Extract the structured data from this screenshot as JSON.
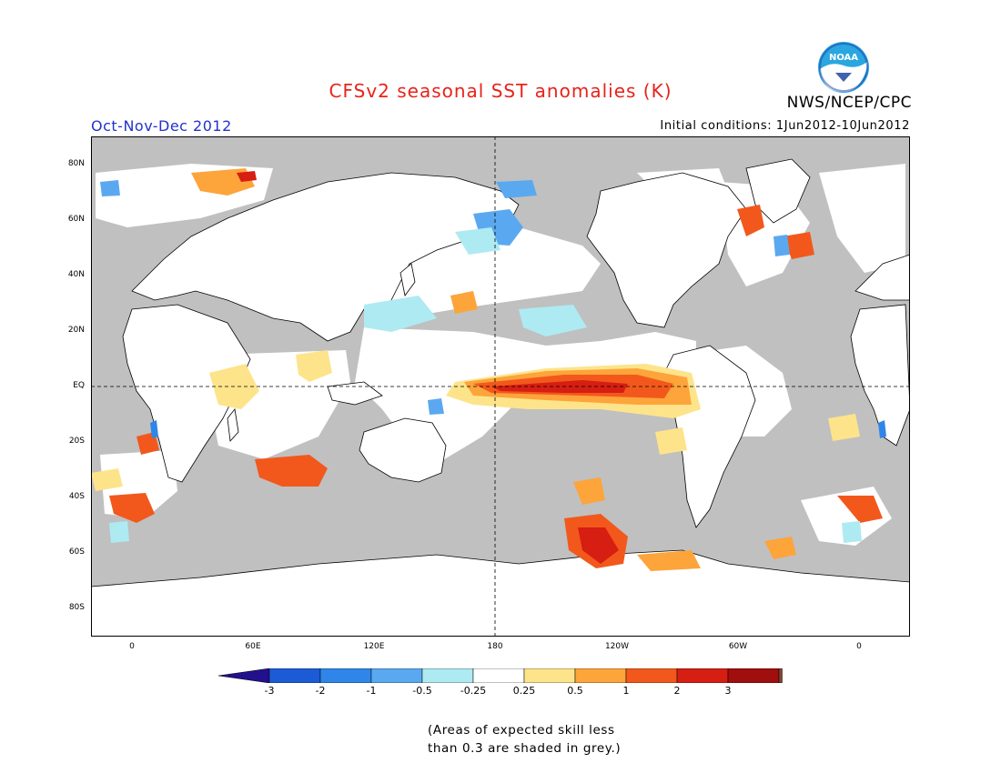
{
  "title": "CFSv2 seasonal SST anomalies (K)",
  "agency": "NWS/NCEP/CPC",
  "logo_text": "NOAA",
  "season": "Oct-Nov-Dec 2012",
  "initial_conditions": "Initial conditions: 1Jun2012-10Jun2012",
  "lat_labels": [
    "80N",
    "60N",
    "40N",
    "20N",
    "EQ",
    "20S",
    "40S",
    "60S",
    "80S"
  ],
  "lon_labels": [
    "0",
    "60E",
    "120E",
    "180",
    "120W",
    "60W",
    "0"
  ],
  "colorbar": {
    "labels": [
      "-3",
      "-2",
      "-1",
      "-0.5",
      "-0.25",
      "0.25",
      "0.5",
      "1",
      "2",
      "3"
    ],
    "colors": [
      "#23108c",
      "#1c5bd6",
      "#2f86e8",
      "#5aa9f0",
      "#aeeaf2",
      "#ffffff",
      "#fde48a",
      "#fda43a",
      "#f2581c",
      "#d61e12",
      "#a00e0e",
      "#7a4a3a"
    ]
  },
  "note_lines": [
    "(Areas of expected skill less",
    "than 0.3 are shaded in grey.)"
  ],
  "colors": {
    "land": "#ffffff",
    "grey_skill": "#c0c0c0",
    "title": "#e8231a",
    "season": "#2233cc"
  }
}
